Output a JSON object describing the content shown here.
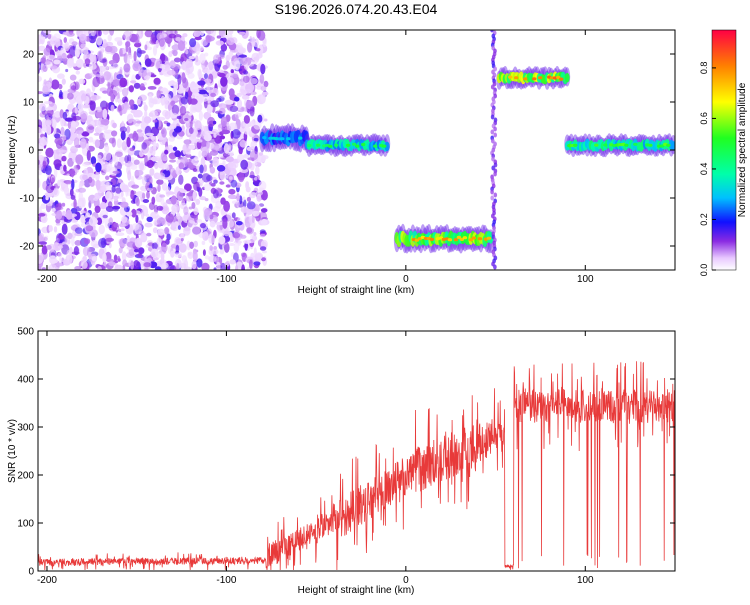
{
  "title": "S196.2026.074.20.43.E04",
  "chart_data": [
    {
      "type": "heatmap",
      "name": "spectrogram",
      "xlabel": "Height of straight line (km)",
      "ylabel": "Frequency (Hz)",
      "xlim": [
        -205,
        150
      ],
      "ylim": [
        -25,
        25
      ],
      "xticks": [
        -200,
        -100,
        0,
        100
      ],
      "yticks": [
        -20,
        -10,
        0,
        10,
        20
      ],
      "noise_region": {
        "x": [
          -205,
          -78
        ],
        "y": [
          -25,
          25
        ]
      },
      "tracks": [
        {
          "x": [
            -80,
            -55
          ],
          "y": [
            0,
            5
          ],
          "amp": 0.35
        },
        {
          "x": [
            -55,
            -10
          ],
          "y": [
            -1,
            3
          ],
          "amp": 0.55
        },
        {
          "x": [
            -5,
            48
          ],
          "y": [
            -21,
            -16
          ],
          "amp": 0.85
        },
        {
          "x": [
            48,
            50
          ],
          "y": [
            -25,
            25
          ],
          "amp": 0.25
        },
        {
          "x": [
            52,
            90
          ],
          "y": [
            13,
            17
          ],
          "amp": 0.9
        },
        {
          "x": [
            90,
            150
          ],
          "y": [
            -1,
            3
          ],
          "amp": 0.6
        }
      ],
      "colorbar": {
        "label": "Normalized spectral amplitude",
        "range": [
          0.0,
          0.95
        ],
        "ticks": [
          0.0,
          0.2,
          0.4,
          0.6,
          0.8
        ]
      }
    },
    {
      "type": "line",
      "name": "snr",
      "xlabel": "Height of straight line (km)",
      "ylabel": "SNR (10 * v/v)",
      "xlim": [
        -205,
        150
      ],
      "ylim": [
        0,
        500
      ],
      "xticks": [
        -200,
        -100,
        0,
        100
      ],
      "yticks": [
        0,
        100,
        200,
        300,
        400,
        500
      ],
      "color": "#e83a3a",
      "segments": [
        {
          "x": [
            -205,
            -78
          ],
          "mean": [
            18,
            22
          ],
          "spread": 12
        },
        {
          "x": [
            -78,
            -40
          ],
          "mean": [
            30,
            100
          ],
          "spread": 45
        },
        {
          "x": [
            -40,
            0
          ],
          "mean": [
            100,
            200
          ],
          "spread": 70
        },
        {
          "x": [
            0,
            40
          ],
          "mean": [
            200,
            265
          ],
          "spread": 80
        },
        {
          "x": [
            40,
            55
          ],
          "mean": [
            265,
            300
          ],
          "spread": 70
        },
        {
          "x": [
            55,
            60
          ],
          "mean": [
            10,
            10
          ],
          "spread": 5
        },
        {
          "x": [
            60,
            150
          ],
          "mean": [
            345,
            345
          ],
          "spread": 60
        }
      ]
    }
  ]
}
